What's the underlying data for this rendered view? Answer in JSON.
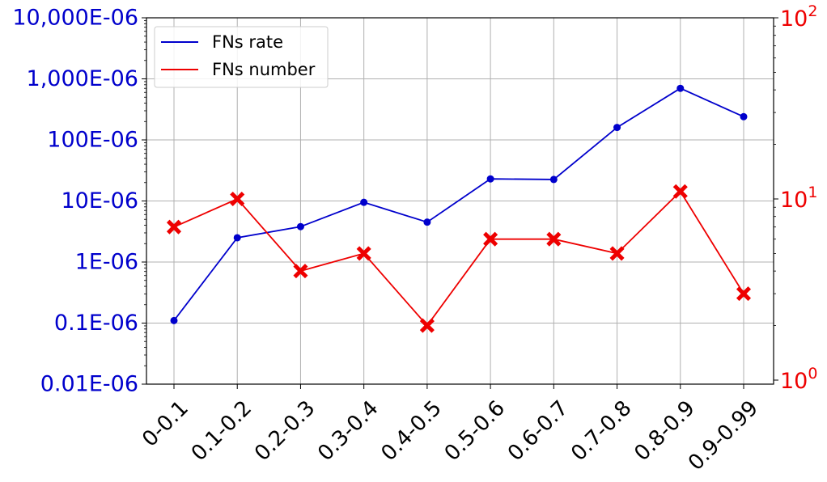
{
  "chart_data": {
    "type": "line",
    "categories": [
      "0-0.1",
      "0.1-0.2",
      "0.2-0.3",
      "0.3-0.4",
      "0.4-0.5",
      "0.5-0.6",
      "0.6-0.7",
      "0.7-0.8",
      "0.8-0.9",
      "0.9-0.99"
    ],
    "left_axis": {
      "scale": "log",
      "ylim": [
        1e-08,
        0.01
      ],
      "color": "#0000cc",
      "ticks": [
        {
          "value": 1e-08,
          "label": "0.01E-06"
        },
        {
          "value": 1e-07,
          "label": "0.1E-06"
        },
        {
          "value": 1e-06,
          "label": "1E-06"
        },
        {
          "value": 1e-05,
          "label": "10E-06"
        },
        {
          "value": 0.0001,
          "label": "100E-06"
        },
        {
          "value": 0.001,
          "label": "1,000E-06"
        },
        {
          "value": 0.01,
          "label": "10,000E-06"
        }
      ]
    },
    "right_axis": {
      "scale": "log",
      "ylim": [
        0.95,
        100
      ],
      "color": "#ee0000",
      "ticks": [
        {
          "value": 1,
          "base": "10",
          "exp": "0"
        },
        {
          "value": 10,
          "base": "10",
          "exp": "1"
        },
        {
          "value": 100,
          "base": "10",
          "exp": "2"
        }
      ]
    },
    "series": [
      {
        "name": "FNs rate",
        "axis": "left",
        "color": "#0000cc",
        "marker": "circle",
        "values": [
          1.1e-07,
          2.5e-06,
          3.8e-06,
          9.5e-06,
          4.5e-06,
          2.3e-05,
          2.25e-05,
          0.00016,
          0.0007,
          0.00024
        ]
      },
      {
        "name": "FNs number",
        "axis": "right",
        "color": "#ee0000",
        "marker": "x",
        "values": [
          7,
          10,
          4,
          5,
          2,
          6,
          6,
          5,
          11,
          3
        ]
      }
    ],
    "grid": true,
    "legend_position": "top-left"
  }
}
